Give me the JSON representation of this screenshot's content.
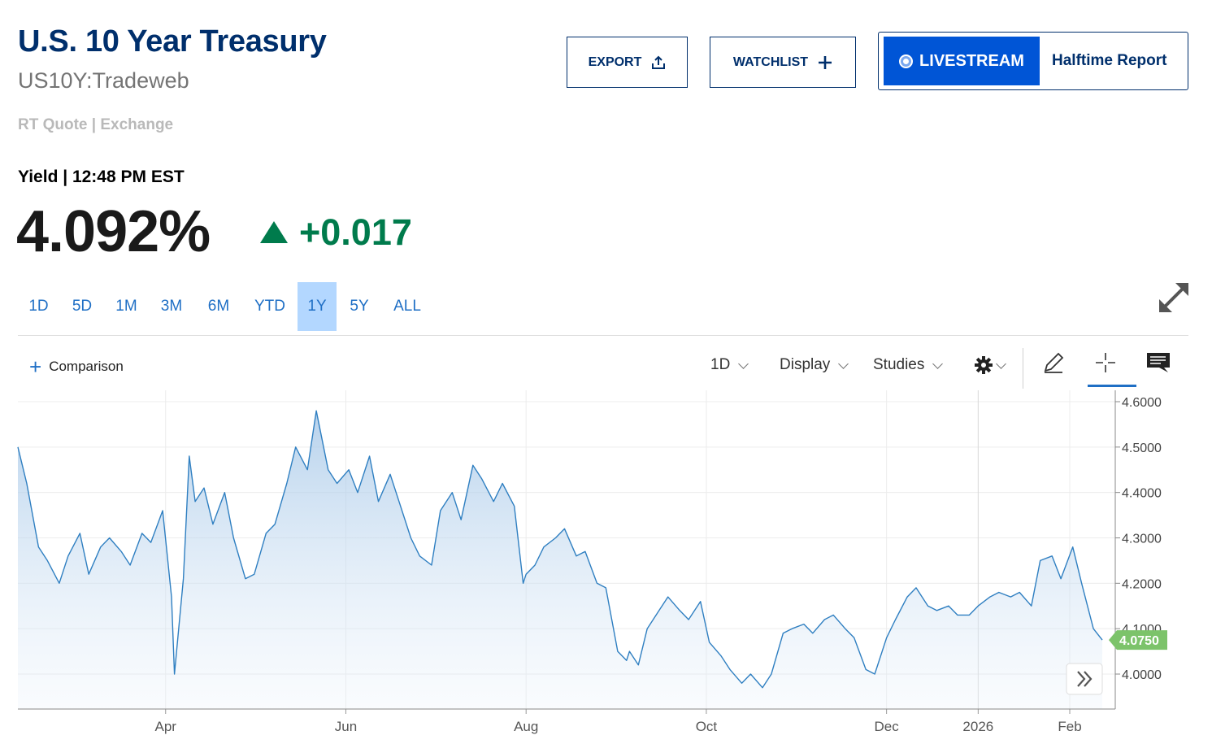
{
  "header": {
    "title": "U.S. 10 Year Treasury",
    "symbol": "US10Y:Tradeweb",
    "quote_source": "RT Quote | Exchange"
  },
  "actions": {
    "export_label": "EXPORT",
    "watchlist_label": "WATCHLIST",
    "livestream_label": "LIVESTREAM",
    "halftime_label": "Halftime Report"
  },
  "quote": {
    "label": "Yield | 12:48 PM EST",
    "value": "4.092%",
    "change": "+0.017",
    "direction": "up"
  },
  "range_tabs": {
    "items": [
      "1D",
      "5D",
      "1M",
      "3M",
      "6M",
      "YTD",
      "1Y",
      "5Y",
      "ALL"
    ],
    "active": "1Y"
  },
  "toolbar": {
    "comparison_label": "Comparison",
    "interval_label": "1D",
    "display_label": "Display",
    "studies_label": "Studies"
  },
  "colors": {
    "brand_navy": "#002f6c",
    "accent_blue": "#1f6fc5",
    "livestream_blue": "#0055d6",
    "positive_green": "#007b4c",
    "active_tab_bg": "#b3d7ff",
    "line_color": "#2f7fc1",
    "last_price_badge": "#7cc36a"
  },
  "chart_data": {
    "type": "area",
    "title": "",
    "xlabel": "",
    "ylabel": "",
    "ylim": [
      3.93,
      4.62
    ],
    "x_tick_labels": [
      "Apr",
      "Jun",
      "Aug",
      "Oct",
      "Dec",
      "2026",
      "Feb"
    ],
    "y_tick_labels": [
      "4.6000",
      "4.5000",
      "4.4000",
      "4.3000",
      "4.2000",
      "4.1000",
      "4.0000"
    ],
    "last_value_label": "4.0750",
    "grid": true,
    "x_start": "2025-02-10",
    "x_end": "2026-02-12",
    "series": [
      {
        "x": [
          "2025-02-10",
          "2025-02-13",
          "2025-02-17",
          "2025-02-20",
          "2025-02-24",
          "2025-02-27",
          "2025-03-03",
          "2025-03-06",
          "2025-03-10",
          "2025-03-13",
          "2025-03-17",
          "2025-03-20",
          "2025-03-24",
          "2025-03-27",
          "2025-03-31",
          "2025-04-03",
          "2025-04-04",
          "2025-04-07",
          "2025-04-09",
          "2025-04-11",
          "2025-04-14",
          "2025-04-17",
          "2025-04-21",
          "2025-04-24",
          "2025-04-28",
          "2025-05-01",
          "2025-05-05",
          "2025-05-08",
          "2025-05-12",
          "2025-05-15",
          "2025-05-19",
          "2025-05-22",
          "2025-05-26",
          "2025-05-29",
          "2025-06-02",
          "2025-06-05",
          "2025-06-09",
          "2025-06-12",
          "2025-06-16",
          "2025-06-19",
          "2025-06-23",
          "2025-06-26",
          "2025-06-30",
          "2025-07-03",
          "2025-07-07",
          "2025-07-10",
          "2025-07-14",
          "2025-07-17",
          "2025-07-21",
          "2025-07-24",
          "2025-07-28",
          "2025-07-31",
          "2025-08-01",
          "2025-08-04",
          "2025-08-07",
          "2025-08-11",
          "2025-08-14",
          "2025-08-18",
          "2025-08-21",
          "2025-08-25",
          "2025-08-28",
          "2025-09-01",
          "2025-09-04",
          "2025-09-05",
          "2025-09-08",
          "2025-09-11",
          "2025-09-15",
          "2025-09-18",
          "2025-09-22",
          "2025-09-25",
          "2025-09-29",
          "2025-10-02",
          "2025-10-06",
          "2025-10-09",
          "2025-10-13",
          "2025-10-16",
          "2025-10-20",
          "2025-10-23",
          "2025-10-27",
          "2025-10-30",
          "2025-11-03",
          "2025-11-06",
          "2025-11-10",
          "2025-11-13",
          "2025-11-17",
          "2025-11-20",
          "2025-11-24",
          "2025-11-27",
          "2025-12-01",
          "2025-12-04",
          "2025-12-08",
          "2025-12-11",
          "2025-12-15",
          "2025-12-18",
          "2025-12-22",
          "2025-12-25",
          "2025-12-29",
          "2026-01-01",
          "2026-01-05",
          "2026-01-08",
          "2026-01-12",
          "2026-01-15",
          "2026-01-19",
          "2026-01-22",
          "2026-01-26",
          "2026-01-29",
          "2026-02-02",
          "2026-02-05",
          "2026-02-09",
          "2026-02-12"
        ],
        "values": [
          4.5,
          4.42,
          4.28,
          4.25,
          4.2,
          4.26,
          4.31,
          4.22,
          4.28,
          4.3,
          4.27,
          4.24,
          4.31,
          4.29,
          4.36,
          4.17,
          4.0,
          4.21,
          4.48,
          4.38,
          4.41,
          4.33,
          4.4,
          4.3,
          4.21,
          4.22,
          4.31,
          4.33,
          4.42,
          4.5,
          4.45,
          4.58,
          4.45,
          4.42,
          4.45,
          4.4,
          4.48,
          4.38,
          4.44,
          4.38,
          4.3,
          4.26,
          4.24,
          4.36,
          4.4,
          4.34,
          4.46,
          4.43,
          4.38,
          4.42,
          4.37,
          4.2,
          4.22,
          4.24,
          4.28,
          4.3,
          4.32,
          4.26,
          4.27,
          4.2,
          4.19,
          4.05,
          4.03,
          4.05,
          4.02,
          4.1,
          4.14,
          4.17,
          4.14,
          4.12,
          4.16,
          4.07,
          4.04,
          4.01,
          3.98,
          4.0,
          3.97,
          4.0,
          4.09,
          4.1,
          4.11,
          4.09,
          4.12,
          4.13,
          4.1,
          4.08,
          4.01,
          4.0,
          4.08,
          4.12,
          4.17,
          4.19,
          4.15,
          4.14,
          4.15,
          4.13,
          4.13,
          4.15,
          4.17,
          4.18,
          4.17,
          4.18,
          4.15,
          4.25,
          4.26,
          4.21,
          4.28,
          4.2,
          4.1,
          4.075
        ]
      }
    ]
  }
}
